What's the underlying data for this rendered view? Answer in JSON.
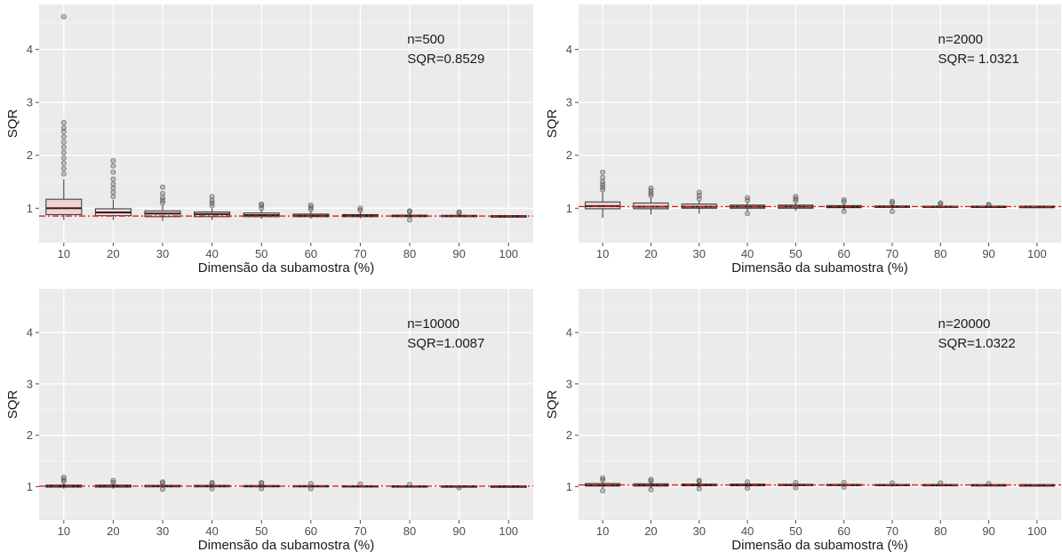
{
  "chart_data": [
    {
      "type": "box",
      "xlabel": "Dimensão da subamostra (%)",
      "ylabel": "SQR",
      "categories": [
        "10",
        "20",
        "30",
        "40",
        "50",
        "60",
        "70",
        "80",
        "90",
        "100"
      ],
      "yticks": [
        1,
        2,
        3,
        4
      ],
      "ylim": [
        0.35,
        4.85
      ],
      "grid": true,
      "annotation": [
        "n=500",
        "SQR=0.8529"
      ],
      "reference_line": 0.8529,
      "reference_color": "#e41a1c",
      "box_fill": "#f4d2d2",
      "boxes": [
        {
          "q1": 0.88,
          "median": 1.0,
          "q3": 1.17,
          "lower": 0.78,
          "upper": 1.55,
          "outliers": [
            1.65,
            1.75,
            1.85,
            1.95,
            2.05,
            2.15,
            2.25,
            2.35,
            2.45,
            2.52,
            2.62,
            4.62
          ]
        },
        {
          "q1": 0.86,
          "median": 0.92,
          "q3": 0.99,
          "lower": 0.78,
          "upper": 1.16,
          "outliers": [
            1.22,
            1.3,
            1.38,
            1.46,
            1.55,
            1.68,
            1.8,
            1.9
          ]
        },
        {
          "q1": 0.84,
          "median": 0.9,
          "q3": 0.95,
          "lower": 0.76,
          "upper": 1.06,
          "outliers": [
            1.1,
            1.15,
            1.2,
            1.28,
            1.4
          ]
        },
        {
          "q1": 0.84,
          "median": 0.89,
          "q3": 0.93,
          "lower": 0.78,
          "upper": 1.0,
          "outliers": [
            1.05,
            1.1,
            1.15,
            1.22
          ]
        },
        {
          "q1": 0.84,
          "median": 0.87,
          "q3": 0.91,
          "lower": 0.8,
          "upper": 0.97,
          "outliers": [
            1.0,
            1.05,
            1.08
          ]
        },
        {
          "q1": 0.84,
          "median": 0.86,
          "q3": 0.89,
          "lower": 0.8,
          "upper": 0.95,
          "outliers": [
            0.98,
            1.02,
            1.06
          ]
        },
        {
          "q1": 0.84,
          "median": 0.86,
          "q3": 0.88,
          "lower": 0.81,
          "upper": 0.93,
          "outliers": [
            0.96,
            1.0
          ]
        },
        {
          "q1": 0.84,
          "median": 0.855,
          "q3": 0.87,
          "lower": 0.82,
          "upper": 0.9,
          "outliers": [
            0.78,
            0.93,
            0.95
          ]
        },
        {
          "q1": 0.845,
          "median": 0.855,
          "q3": 0.865,
          "lower": 0.83,
          "upper": 0.885,
          "outliers": [
            0.91,
            0.93
          ]
        },
        {
          "q1": 0.85,
          "median": 0.853,
          "q3": 0.856,
          "lower": 0.846,
          "upper": 0.86,
          "outliers": []
        }
      ]
    },
    {
      "type": "box",
      "xlabel": "Dimensão da subamostra (%)",
      "ylabel": "SQR",
      "categories": [
        "10",
        "20",
        "30",
        "40",
        "50",
        "60",
        "70",
        "80",
        "90",
        "100"
      ],
      "yticks": [
        1,
        2,
        3,
        4
      ],
      "ylim": [
        0.35,
        4.85
      ],
      "grid": true,
      "annotation": [
        "n=2000",
        "SQR= 1.0321"
      ],
      "reference_line": 1.0321,
      "reference_color": "#e41a1c",
      "box_fill": "#f4d2d2",
      "boxes": [
        {
          "q1": 0.99,
          "median": 1.04,
          "q3": 1.12,
          "lower": 0.82,
          "upper": 1.3,
          "outliers": [
            1.35,
            1.4,
            1.45,
            1.5,
            1.58,
            1.68
          ]
        },
        {
          "q1": 0.99,
          "median": 1.03,
          "q3": 1.1,
          "lower": 0.88,
          "upper": 1.2,
          "outliers": [
            1.24,
            1.28,
            1.33,
            1.38
          ]
        },
        {
          "q1": 1.0,
          "median": 1.03,
          "q3": 1.08,
          "lower": 0.9,
          "upper": 1.14,
          "outliers": [
            1.18,
            1.24,
            1.3
          ]
        },
        {
          "q1": 1.0,
          "median": 1.03,
          "q3": 1.06,
          "lower": 0.94,
          "upper": 1.11,
          "outliers": [
            0.9,
            1.15,
            1.2
          ]
        },
        {
          "q1": 1.0,
          "median": 1.03,
          "q3": 1.06,
          "lower": 0.95,
          "upper": 1.1,
          "outliers": [
            1.14,
            1.18,
            1.22
          ]
        },
        {
          "q1": 1.01,
          "median": 1.03,
          "q3": 1.05,
          "lower": 0.96,
          "upper": 1.09,
          "outliers": [
            0.94,
            1.12,
            1.16
          ]
        },
        {
          "q1": 1.015,
          "median": 1.03,
          "q3": 1.045,
          "lower": 0.98,
          "upper": 1.07,
          "outliers": [
            0.94,
            1.1,
            1.13
          ]
        },
        {
          "q1": 1.02,
          "median": 1.03,
          "q3": 1.04,
          "lower": 1.0,
          "upper": 1.06,
          "outliers": [
            1.08,
            1.1
          ]
        },
        {
          "q1": 1.025,
          "median": 1.032,
          "q3": 1.038,
          "lower": 1.01,
          "upper": 1.05,
          "outliers": [
            1.06,
            1.07
          ]
        },
        {
          "q1": 1.03,
          "median": 1.032,
          "q3": 1.034,
          "lower": 1.028,
          "upper": 1.036,
          "outliers": []
        }
      ]
    },
    {
      "type": "box",
      "xlabel": "Dimensão da subamostra (%)",
      "ylabel": "SQR",
      "categories": [
        "10",
        "20",
        "30",
        "40",
        "50",
        "60",
        "70",
        "80",
        "90",
        "100"
      ],
      "yticks": [
        1,
        2,
        3,
        4
      ],
      "ylim": [
        0.35,
        4.85
      ],
      "grid": true,
      "annotation": [
        "n=10000",
        "SQR=1.0087"
      ],
      "reference_line": 1.0087,
      "reference_color": "#e41a1c",
      "box_fill": "#f4d2d2",
      "boxes": [
        {
          "q1": 0.99,
          "median": 1.01,
          "q3": 1.03,
          "lower": 0.96,
          "upper": 1.07,
          "outliers": [
            1.1,
            1.14,
            1.18
          ]
        },
        {
          "q1": 0.99,
          "median": 1.01,
          "q3": 1.03,
          "lower": 0.96,
          "upper": 1.06,
          "outliers": [
            1.08,
            1.12
          ]
        },
        {
          "q1": 0.995,
          "median": 1.01,
          "q3": 1.025,
          "lower": 0.97,
          "upper": 1.05,
          "outliers": [
            0.95,
            1.07,
            1.09
          ]
        },
        {
          "q1": 0.995,
          "median": 1.01,
          "q3": 1.025,
          "lower": 0.97,
          "upper": 1.05,
          "outliers": [
            0.96,
            1.06,
            1.08
          ]
        },
        {
          "q1": 0.995,
          "median": 1.008,
          "q3": 1.022,
          "lower": 0.975,
          "upper": 1.045,
          "outliers": [
            0.96,
            1.06,
            1.08
          ]
        },
        {
          "q1": 0.997,
          "median": 1.008,
          "q3": 1.02,
          "lower": 0.98,
          "upper": 1.04,
          "outliers": [
            0.96,
            1.06
          ]
        },
        {
          "q1": 1.0,
          "median": 1.008,
          "q3": 1.017,
          "lower": 0.985,
          "upper": 1.03,
          "outliers": [
            1.05
          ]
        },
        {
          "q1": 1.0,
          "median": 1.008,
          "q3": 1.015,
          "lower": 0.99,
          "upper": 1.025,
          "outliers": [
            1.04
          ]
        },
        {
          "q1": 1.003,
          "median": 1.008,
          "q3": 1.013,
          "lower": 0.995,
          "upper": 1.02,
          "outliers": [
            0.98
          ]
        },
        {
          "q1": 1.006,
          "median": 1.0087,
          "q3": 1.011,
          "lower": 1.004,
          "upper": 1.013,
          "outliers": []
        }
      ]
    },
    {
      "type": "box",
      "xlabel": "Dimensão da subamostra (%)",
      "ylabel": "SQR",
      "categories": [
        "10",
        "20",
        "30",
        "40",
        "50",
        "60",
        "70",
        "80",
        "90",
        "100"
      ],
      "yticks": [
        1,
        2,
        3,
        4
      ],
      "ylim": [
        0.35,
        4.85
      ],
      "grid": true,
      "annotation": [
        "n=20000",
        "SQR=1.0322"
      ],
      "reference_line": 1.0322,
      "reference_color": "#e41a1c",
      "box_fill": "#f4d2d2",
      "boxes": [
        {
          "q1": 1.01,
          "median": 1.03,
          "q3": 1.06,
          "lower": 0.97,
          "upper": 1.1,
          "outliers": [
            0.92,
            1.13,
            1.17
          ]
        },
        {
          "q1": 1.01,
          "median": 1.03,
          "q3": 1.055,
          "lower": 0.97,
          "upper": 1.09,
          "outliers": [
            0.94,
            1.11,
            1.14
          ]
        },
        {
          "q1": 1.015,
          "median": 1.03,
          "q3": 1.05,
          "lower": 0.98,
          "upper": 1.08,
          "outliers": [
            0.96,
            1.1,
            1.12
          ]
        },
        {
          "q1": 1.015,
          "median": 1.03,
          "q3": 1.05,
          "lower": 0.985,
          "upper": 1.075,
          "outliers": [
            0.97,
            1.09
          ]
        },
        {
          "q1": 1.018,
          "median": 1.032,
          "q3": 1.046,
          "lower": 0.99,
          "upper": 1.07,
          "outliers": [
            0.98,
            1.08
          ]
        },
        {
          "q1": 1.02,
          "median": 1.032,
          "q3": 1.044,
          "lower": 0.995,
          "upper": 1.065,
          "outliers": [
            0.99,
            1.08
          ]
        },
        {
          "q1": 1.022,
          "median": 1.032,
          "q3": 1.042,
          "lower": 1.0,
          "upper": 1.06,
          "outliers": [
            1.07
          ]
        },
        {
          "q1": 1.024,
          "median": 1.032,
          "q3": 1.04,
          "lower": 1.005,
          "upper": 1.055,
          "outliers": [
            1.07
          ]
        },
        {
          "q1": 1.027,
          "median": 1.032,
          "q3": 1.037,
          "lower": 1.015,
          "upper": 1.048,
          "outliers": [
            1.06
          ]
        },
        {
          "q1": 1.03,
          "median": 1.0322,
          "q3": 1.034,
          "lower": 1.027,
          "upper": 1.037,
          "outliers": []
        }
      ]
    }
  ]
}
